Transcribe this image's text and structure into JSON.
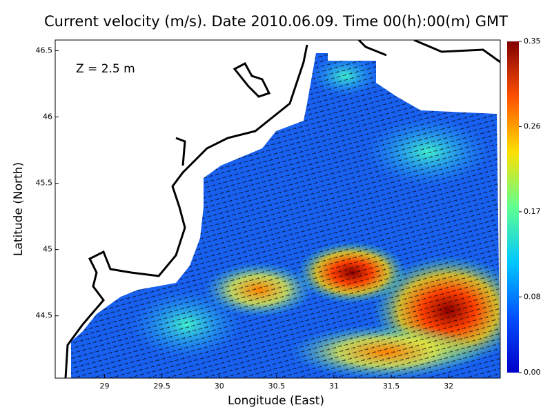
{
  "chart_data": {
    "type": "map",
    "title": "Current velocity (m/s). Date 2010.06.09. Time 00(h):00(m) GMT",
    "annotation": "Z = 2.5 m",
    "x_label": "Longitude (East)",
    "y_label": "Latitude (North)",
    "xlim": [
      28.57,
      32.45
    ],
    "ylim": [
      44.03,
      46.58
    ],
    "xticks": [
      29,
      29.5,
      30,
      30.5,
      31,
      31.5,
      32
    ],
    "yticks": [
      44.5,
      45,
      45.5,
      46,
      46.5
    ],
    "colorbar_lim": [
      0,
      0.35
    ],
    "colorbar_ticks": [
      {
        "value": 0,
        "label": "0.00"
      },
      0.08,
      0.17,
      0.26,
      0.35
    ],
    "colormap": [
      "#0000c8",
      "#0050ff",
      "#00c8ff",
      "#60ff90",
      "#ffe000",
      "#ff5000",
      "#800000"
    ]
  }
}
